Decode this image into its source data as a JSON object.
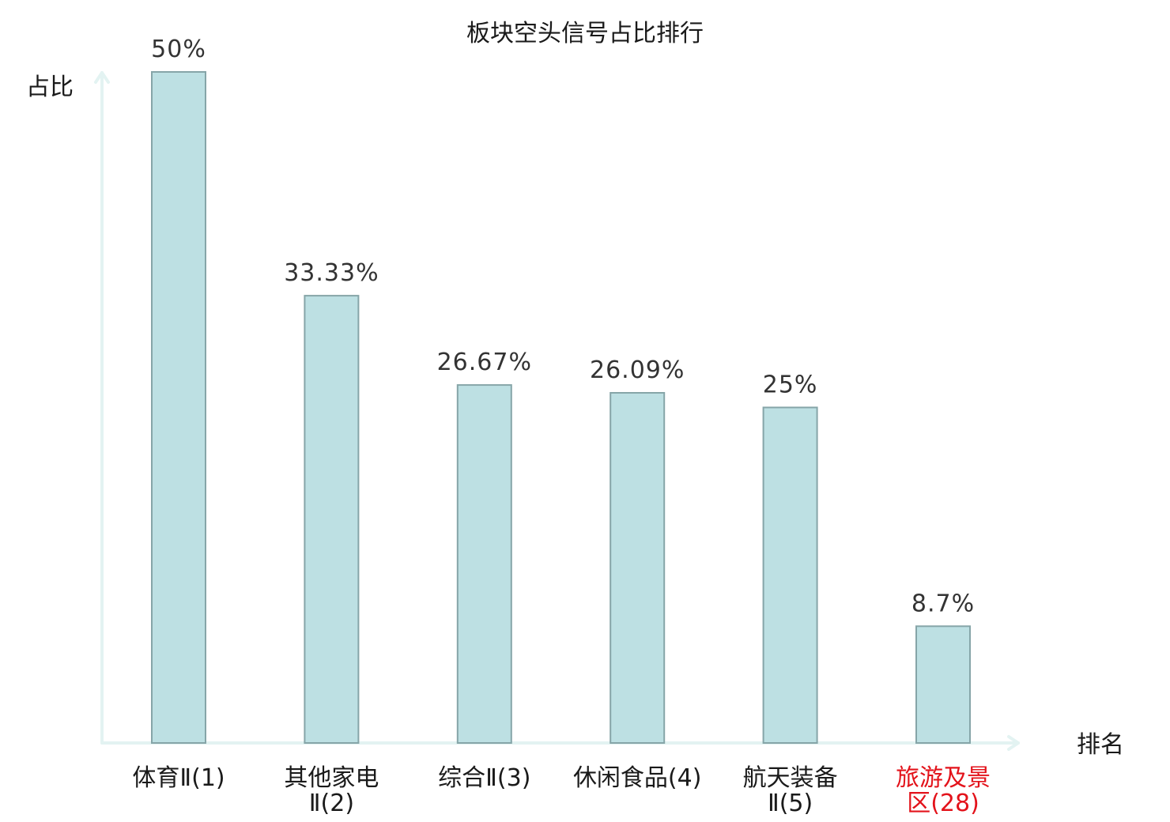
{
  "chart_data": {
    "type": "bar",
    "title": "板块空头信号占比排行",
    "ylabel": "占比",
    "xlabel": "排名",
    "categories": [
      [
        "体育Ⅱ(1)"
      ],
      [
        "其他家电",
        "Ⅱ(2)"
      ],
      [
        "综合Ⅱ(3)"
      ],
      [
        "休闲食品(4)"
      ],
      [
        "航天装备",
        "Ⅱ(5)"
      ],
      [
        "旅游及景",
        "区(28)"
      ]
    ],
    "values": [
      50,
      33.33,
      26.67,
      26.09,
      25,
      8.7
    ],
    "value_labels": [
      "50%",
      "33.33%",
      "26.67%",
      "26.09%",
      "25%",
      "8.7%"
    ],
    "highlight_index": 5,
    "ylim": [
      0,
      50
    ],
    "grid": false,
    "colors": {
      "bar_fill": "#bde0e3",
      "bar_stroke": "#86a5a8",
      "axis": "#e3f3f2",
      "label": "#1a1a1a",
      "highlight": "#e3131b"
    }
  }
}
